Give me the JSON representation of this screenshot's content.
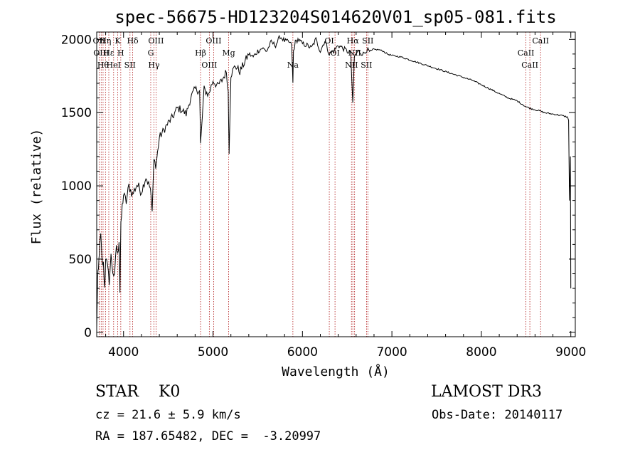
{
  "chart_data": {
    "type": "line",
    "title": "spec-56675-HD123204S014620V01_sp05-081.fits",
    "xlabel": "Wavelength (Å)",
    "ylabel": "Flux (relative)",
    "xlim": [
      3700,
      9050
    ],
    "ylim": [
      -30,
      2050
    ],
    "xticks": [
      4000,
      5000,
      6000,
      7000,
      8000,
      9000
    ],
    "yticks": [
      0,
      500,
      1000,
      1500,
      2000
    ],
    "series": [
      {
        "name": "flux",
        "x": [
          3700,
          3710,
          3720,
          3730,
          3745,
          3760,
          3775,
          3790,
          3800,
          3820,
          3840,
          3860,
          3880,
          3900,
          3920,
          3935,
          3950,
          3960,
          3970,
          3985,
          4000,
          4030,
          4060,
          4100,
          4150,
          4200,
          4250,
          4300,
          4320,
          4340,
          4360,
          4400,
          4450,
          4500,
          4550,
          4600,
          4650,
          4700,
          4750,
          4800,
          4850,
          4861,
          4900,
          4950,
          5000,
          5050,
          5100,
          5150,
          5170,
          5180,
          5200,
          5250,
          5300,
          5350,
          5400,
          5450,
          5500,
          5550,
          5600,
          5650,
          5700,
          5750,
          5800,
          5850,
          5880,
          5893,
          5900,
          5920,
          5950,
          6000,
          6050,
          6100,
          6150,
          6200,
          6250,
          6300,
          6350,
          6400,
          6450,
          6500,
          6540,
          6563,
          6580,
          6620,
          6680,
          6720,
          6760,
          6800,
          6850,
          6900,
          6950,
          7000,
          7100,
          7200,
          7300,
          7400,
          7500,
          7600,
          7700,
          7800,
          7900,
          8000,
          8100,
          8200,
          8300,
          8400,
          8498,
          8542,
          8600,
          8662,
          8700,
          8800,
          8900,
          8960,
          8975,
          8985,
          8995,
          9000
        ],
        "y": [
          20,
          360,
          420,
          560,
          660,
          480,
          460,
          300,
          520,
          440,
          350,
          520,
          420,
          370,
          600,
          520,
          640,
          280,
          720,
          860,
          940,
          890,
          1000,
          940,
          1010,
          960,
          1060,
          980,
          820,
          1210,
          1120,
          1330,
          1380,
          1430,
          1470,
          1530,
          1520,
          1490,
          1600,
          1660,
          1650,
          1280,
          1660,
          1620,
          1720,
          1680,
          1720,
          1780,
          1640,
          1240,
          1760,
          1820,
          1780,
          1840,
          1900,
          1880,
          1920,
          1940,
          1920,
          1980,
          1960,
          2020,
          1990,
          1980,
          1960,
          1700,
          1920,
          1980,
          2000,
          1970,
          1960,
          1940,
          2000,
          1920,
          1990,
          1900,
          1920,
          1960,
          1940,
          1920,
          1900,
          1550,
          1880,
          1920,
          1900,
          1930,
          1910,
          1930,
          1930,
          1920,
          1900,
          1890,
          1880,
          1860,
          1840,
          1820,
          1800,
          1780,
          1760,
          1740,
          1720,
          1690,
          1660,
          1630,
          1600,
          1580,
          1540,
          1530,
          1520,
          1510,
          1500,
          1490,
          1480,
          1470,
          1450,
          900,
          1200,
          300
        ]
      }
    ],
    "lines": [
      {
        "wl": 3727,
        "label": "OII"
      },
      {
        "wl": 3750,
        "label": "OIII"
      },
      {
        "wl": 3771,
        "label": "Hθ"
      },
      {
        "wl": 3798,
        "label": "Hη"
      },
      {
        "wl": 3835,
        "label": "Hε"
      },
      {
        "wl": 3889,
        "label": "HeI"
      },
      {
        "wl": 3934,
        "label": "K"
      },
      {
        "wl": 3969,
        "label": "H"
      },
      {
        "wl": 4072,
        "label": "SII"
      },
      {
        "wl": 4102,
        "label": "Hδ"
      },
      {
        "wl": 4304,
        "label": "G"
      },
      {
        "wl": 4340,
        "label": "Hγ"
      },
      {
        "wl": 4363,
        "label": "OIII"
      },
      {
        "wl": 4861,
        "label": "Hβ"
      },
      {
        "wl": 4959,
        "label": "OIII"
      },
      {
        "wl": 5007,
        "label": "OIII"
      },
      {
        "wl": 5175,
        "label": "Mg"
      },
      {
        "wl": 5893,
        "label": "Na"
      },
      {
        "wl": 6300,
        "label": "OI"
      },
      {
        "wl": 6364,
        "label": "OI"
      },
      {
        "wl": 6548,
        "label": "NII"
      },
      {
        "wl": 6563,
        "label": "Hα"
      },
      {
        "wl": 6583,
        "label": "NII"
      },
      {
        "wl": 6716,
        "label": "SII"
      },
      {
        "wl": 6731,
        "label": "SII"
      },
      {
        "wl": 8498,
        "label": "CaII"
      },
      {
        "wl": 8542,
        "label": "CaII"
      },
      {
        "wl": 8662,
        "label": "CaII"
      }
    ]
  },
  "info": {
    "object_class": "STAR",
    "subclass": "K0",
    "survey": "LAMOST DR3",
    "cz": "cz = 21.6 ± 5.9 km/s",
    "obs_date": "Obs-Date: 20140117",
    "radec": "RA = 187.65482, DEC =  -3.20997"
  }
}
